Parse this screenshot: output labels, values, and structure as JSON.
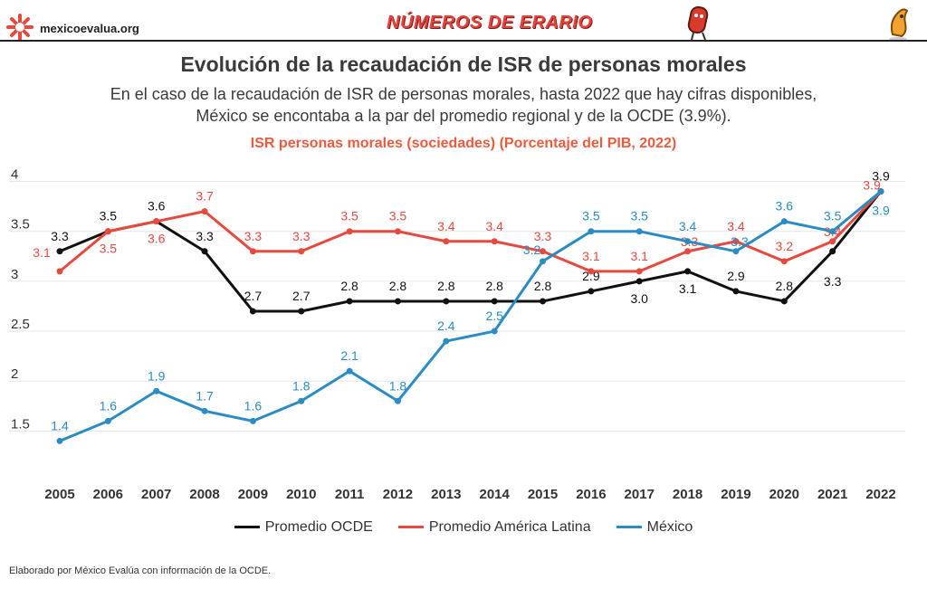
{
  "header": {
    "site": "mexicoevalua.org",
    "brand": "NÚMEROS DE ERARIO",
    "logo_icon": "asterisk-logo-icon",
    "mascot_icons": [
      "red-coin-mascot-icon",
      "orange-character-mascot-icon"
    ]
  },
  "title": "Evolución de la recaudación de ISR de personas morales",
  "subtitle": "En el caso de la recaudación de ISR de personas morales, hasta 2022 que hay cifras disponibles, México se encontaba a la par del promedio regional y de la OCDE (3.9%).",
  "footer": "Elaborado por México Evalúa con información de la OCDE.",
  "chart_data": {
    "type": "line",
    "title": "ISR personas morales (sociedades) (Porcentaje del PIB, 2022)",
    "xlabel": "",
    "ylabel": "",
    "x": [
      "2005",
      "2006",
      "2007",
      "2008",
      "2009",
      "2010",
      "2011",
      "2012",
      "2013",
      "2014",
      "2015",
      "2016",
      "2017",
      "2018",
      "2019",
      "2020",
      "2021",
      "2022"
    ],
    "yticks": [
      "1.5",
      "2",
      "2.5",
      "3",
      "3.5",
      "4"
    ],
    "ylim": [
      1.15,
      4.15
    ],
    "grid": true,
    "legend_position": "bottom",
    "series": [
      {
        "name": "Promedio OCDE",
        "color": "#111111",
        "values": [
          3.3,
          3.5,
          3.6,
          3.3,
          2.7,
          2.7,
          2.8,
          2.8,
          2.8,
          2.8,
          2.8,
          2.9,
          3.0,
          3.1,
          2.9,
          2.8,
          3.3,
          3.9
        ],
        "labels": [
          "3.3",
          "3.5",
          "3.6",
          "3.3",
          "2.7",
          "2.7",
          "2.8",
          "2.8",
          "2.8",
          "2.8",
          "2.8",
          "2.9",
          "3.0",
          "3.1",
          "2.9",
          "2.8",
          "3.3",
          "3.9"
        ]
      },
      {
        "name": "Promedio América Latina",
        "color": "#e8493f",
        "values": [
          3.1,
          3.5,
          3.6,
          3.7,
          3.3,
          3.3,
          3.5,
          3.5,
          3.4,
          3.4,
          3.3,
          3.1,
          3.1,
          3.3,
          3.4,
          3.2,
          3.4,
          3.9
        ],
        "labels": [
          "3.1",
          "3.5",
          "3.6",
          "3.7",
          "3.3",
          "3.3",
          "3.5",
          "3.5",
          "3.4",
          "3.4",
          "3.3",
          "3.1",
          "3.1",
          "3.3",
          "3.4",
          "3.2",
          "3.4",
          "3.9"
        ]
      },
      {
        "name": "México",
        "color": "#2b8cc4",
        "values": [
          1.4,
          1.6,
          1.9,
          1.7,
          1.6,
          1.8,
          2.1,
          1.8,
          2.4,
          2.5,
          3.2,
          3.5,
          3.5,
          3.4,
          3.3,
          3.6,
          3.5,
          3.9
        ],
        "labels": [
          "1.4",
          "1.6",
          "1.9",
          "1.7",
          "1.6",
          "1.8",
          "2.1",
          "1.8",
          "2.4",
          "2.5",
          "3.2",
          "3.5",
          "3.5",
          "3.4",
          "3.3",
          "3.6",
          "3.5",
          "3.9"
        ]
      }
    ]
  }
}
